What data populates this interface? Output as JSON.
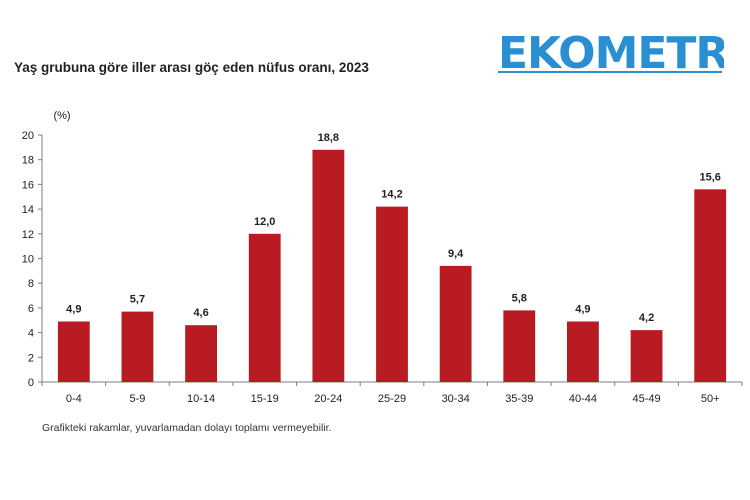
{
  "header": {
    "title": "Yaş grubuna göre iller arası göç eden nüfus oranı, 2023",
    "logo_text": "EKOMETRE"
  },
  "footnote": "Grafikteki rakamlar, yuvarlamadan dolayı toplamı vermeyebilir.",
  "colors": {
    "bar": "#b81c22",
    "logo": "#2a8fd0",
    "axis": "#7f7f7f"
  },
  "chart_data": {
    "type": "bar",
    "title": "Yaş grubuna göre iller arası göç eden nüfus oranı, 2023",
    "ylabel": "(%)",
    "xlabel": "",
    "categories": [
      "0-4",
      "5-9",
      "10-14",
      "15-19",
      "20-24",
      "25-29",
      "30-34",
      "35-39",
      "40-44",
      "45-49",
      "50+"
    ],
    "values": [
      4.9,
      5.7,
      4.6,
      12.0,
      18.8,
      14.2,
      9.4,
      5.8,
      4.9,
      4.2,
      15.6
    ],
    "value_labels": [
      "4,9",
      "5,7",
      "4,6",
      "12,0",
      "18,8",
      "14,2",
      "9,4",
      "5,8",
      "4,9",
      "4,2",
      "15,6"
    ],
    "yticks": [
      0,
      2,
      4,
      6,
      8,
      10,
      12,
      14,
      16,
      18,
      20
    ],
    "ylim": [
      0,
      20
    ],
    "grid": false,
    "legend": "none"
  }
}
